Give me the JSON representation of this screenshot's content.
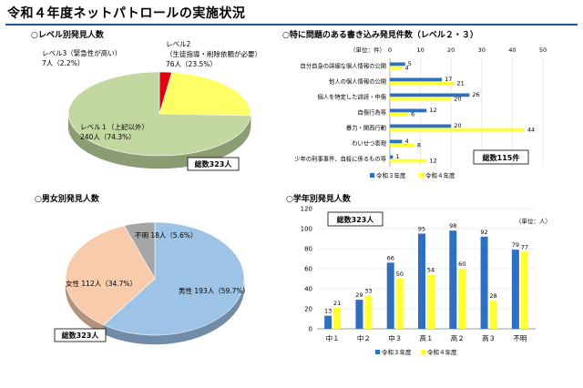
{
  "page": {
    "title": "令和４年度ネットパトロールの実施状況"
  },
  "colors": {
    "r3": "#2e6fc0",
    "r4": "#ffff33",
    "level1": "#c3d8a0",
    "level2": "#ffff66",
    "level3": "#e0000f",
    "male": "#9dc3e6",
    "female": "#f8cbad",
    "unknown": "#a6a6a6"
  },
  "chart_data": [
    {
      "id": "level",
      "type": "pie",
      "title": "○レベル別発見人数",
      "total_label": "総数323人",
      "slices": [
        {
          "label_line1": "レベル１（上記以外）",
          "label_line2": "240人（74.3%）",
          "value": 240,
          "percent": 74.3,
          "color": "#c3d8a0"
        },
        {
          "label_line1": "レベル2",
          "label_line2": "（生徒指導・削除依頼が必要）",
          "label_line3": "76人（23.5%）",
          "value": 76,
          "percent": 23.5,
          "color": "#ffff66"
        },
        {
          "label_line1": "レベル3（緊急性が高い）",
          "label_line2": "7人（2.2%）",
          "value": 7,
          "percent": 2.2,
          "color": "#e0000f"
        }
      ]
    },
    {
      "id": "topics",
      "type": "bar",
      "orientation": "horizontal",
      "title": "○特に問題のある書き込み発見件数（レベル２・３）",
      "unit_label": "（単位：件）",
      "total_label": "総数115件",
      "xlim": [
        0,
        50
      ],
      "xticks": [
        "0",
        "10",
        "20",
        "30",
        "40",
        "50"
      ],
      "categories": [
        "自分自身の詳細な個人情報の公開",
        "他人の個人情報の公開",
        "個人を特定した誹謗・中傷",
        "自傷行為等",
        "暴力・関西行動",
        "わいせつ表現",
        "少年の刑事事件、自殺に係るもの等"
      ],
      "series": [
        {
          "name": "令和３年度",
          "values": [
            5,
            17,
            26,
            12,
            20,
            4,
            1
          ]
        },
        {
          "name": "令和４年度",
          "values": [
            4,
            21,
            20,
            6,
            44,
            8,
            12
          ]
        }
      ]
    },
    {
      "id": "gender",
      "type": "pie",
      "title": "○男女別発見人数",
      "total_label": "総数323人",
      "slices": [
        {
          "label": "男性 193人（59.7%）",
          "value": 193,
          "percent": 59.7,
          "color": "#9dc3e6"
        },
        {
          "label": "女性 112人（34.7%）",
          "value": 112,
          "percent": 34.7,
          "color": "#f8cbad"
        },
        {
          "label": "不明 18人（5.6%）",
          "value": 18,
          "percent": 5.6,
          "color": "#a6a6a6"
        }
      ]
    },
    {
      "id": "grade",
      "type": "bar",
      "orientation": "vertical",
      "title": "○学年別発見人数",
      "unit_label": "（単位：人）",
      "total_label": "総数323人",
      "ylim": [
        0,
        120
      ],
      "yticks": [
        "0",
        "20",
        "40",
        "60",
        "80",
        "100",
        "120"
      ],
      "categories": [
        "中１",
        "中２",
        "中３",
        "高１",
        "高２",
        "高３",
        "不明"
      ],
      "series": [
        {
          "name": "令和３年度",
          "values": [
            13,
            29,
            66,
            95,
            98,
            92,
            79
          ]
        },
        {
          "name": "令和４年度",
          "values": [
            21,
            33,
            50,
            54,
            60,
            28,
            77
          ]
        }
      ]
    }
  ]
}
